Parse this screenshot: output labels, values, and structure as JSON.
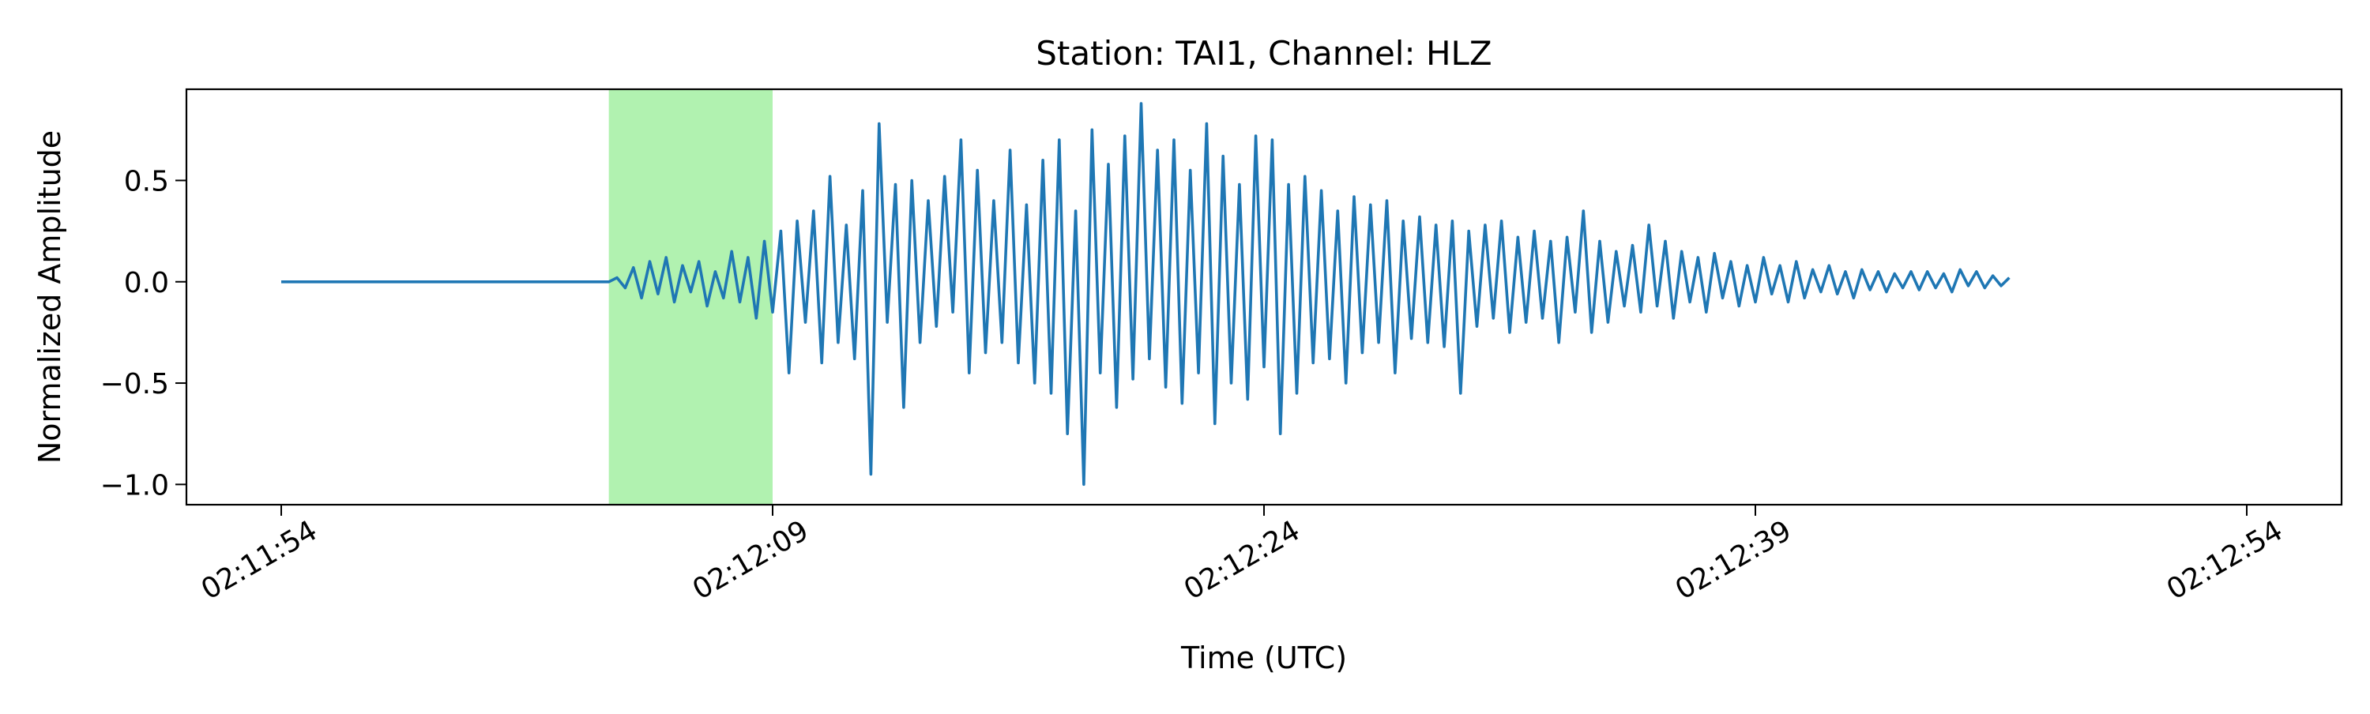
{
  "chart_data": {
    "type": "line",
    "title": "Station: TAI1, Channel: HLZ",
    "xlabel": "Time (UTC)",
    "ylabel": "Normalized Amplitude",
    "x_axis": {
      "type": "time",
      "start": "02:11:54",
      "end": "02:12:54",
      "ticks": [
        "02:11:54",
        "02:12:09",
        "02:12:24",
        "02:12:39",
        "02:12:54"
      ]
    },
    "y_axis": {
      "ylim": [
        -1.1,
        0.95
      ],
      "ticks": [
        0.5,
        0.0,
        -0.5,
        -1.0
      ],
      "tick_labels": [
        "0.5",
        "0.0",
        "−0.5",
        "−1.0"
      ]
    },
    "grid": false,
    "highlight_window": {
      "start": "02:12:04",
      "end": "02:12:09",
      "color": "#b1f2b0"
    },
    "series": [
      {
        "color": "#1f77b4",
        "sample_interval_s": 0.25,
        "values": [
          0.0,
          0.0,
          0.0,
          0.0,
          0.0,
          0.0,
          0.0,
          0.0,
          0.0,
          0.0,
          0.0,
          0.0,
          0.0,
          0.0,
          0.0,
          0.0,
          0.0,
          0.0,
          0.0,
          0.0,
          0.0,
          0.0,
          0.0,
          0.0,
          0.0,
          0.0,
          0.0,
          0.0,
          0.0,
          0.0,
          0.0,
          0.0,
          0.0,
          0.0,
          0.0,
          0.0,
          0.0,
          0.0,
          0.0,
          0.0,
          0.0,
          0.02,
          -0.03,
          0.07,
          -0.08,
          0.1,
          -0.06,
          0.12,
          -0.1,
          0.08,
          -0.05,
          0.1,
          -0.12,
          0.05,
          -0.08,
          0.15,
          -0.1,
          0.12,
          -0.18,
          0.2,
          -0.15,
          0.25,
          -0.45,
          0.3,
          -0.2,
          0.35,
          -0.4,
          0.52,
          -0.3,
          0.28,
          -0.38,
          0.45,
          -0.95,
          0.78,
          -0.2,
          0.48,
          -0.62,
          0.5,
          -0.3,
          0.4,
          -0.22,
          0.52,
          -0.15,
          0.7,
          -0.45,
          0.55,
          -0.35,
          0.4,
          -0.3,
          0.65,
          -0.4,
          0.38,
          -0.5,
          0.6,
          -0.55,
          0.7,
          -0.75,
          0.35,
          -1.0,
          0.75,
          -0.45,
          0.58,
          -0.62,
          0.72,
          -0.48,
          0.88,
          -0.38,
          0.65,
          -0.52,
          0.7,
          -0.6,
          0.55,
          -0.45,
          0.78,
          -0.7,
          0.62,
          -0.5,
          0.48,
          -0.58,
          0.72,
          -0.42,
          0.7,
          -0.75,
          0.48,
          -0.55,
          0.52,
          -0.4,
          0.45,
          -0.38,
          0.35,
          -0.5,
          0.42,
          -0.35,
          0.38,
          -0.3,
          0.4,
          -0.45,
          0.3,
          -0.28,
          0.32,
          -0.3,
          0.28,
          -0.32,
          0.3,
          -0.55,
          0.25,
          -0.22,
          0.28,
          -0.18,
          0.3,
          -0.25,
          0.22,
          -0.2,
          0.25,
          -0.18,
          0.2,
          -0.3,
          0.22,
          -0.15,
          0.35,
          -0.25,
          0.2,
          -0.2,
          0.15,
          -0.12,
          0.18,
          -0.15,
          0.28,
          -0.12,
          0.2,
          -0.18,
          0.15,
          -0.1,
          0.12,
          -0.15,
          0.14,
          -0.08,
          0.1,
          -0.12,
          0.08,
          -0.1,
          0.12,
          -0.06,
          0.08,
          -0.1,
          0.1,
          -0.08,
          0.06,
          -0.05,
          0.08,
          -0.06,
          0.05,
          -0.08,
          0.06,
          -0.04,
          0.05,
          -0.05,
          0.04,
          -0.03,
          0.05,
          -0.04,
          0.05,
          -0.03,
          0.04,
          -0.05,
          0.06,
          -0.02,
          0.05,
          -0.03,
          0.03,
          -0.02,
          0.02
        ]
      }
    ]
  }
}
